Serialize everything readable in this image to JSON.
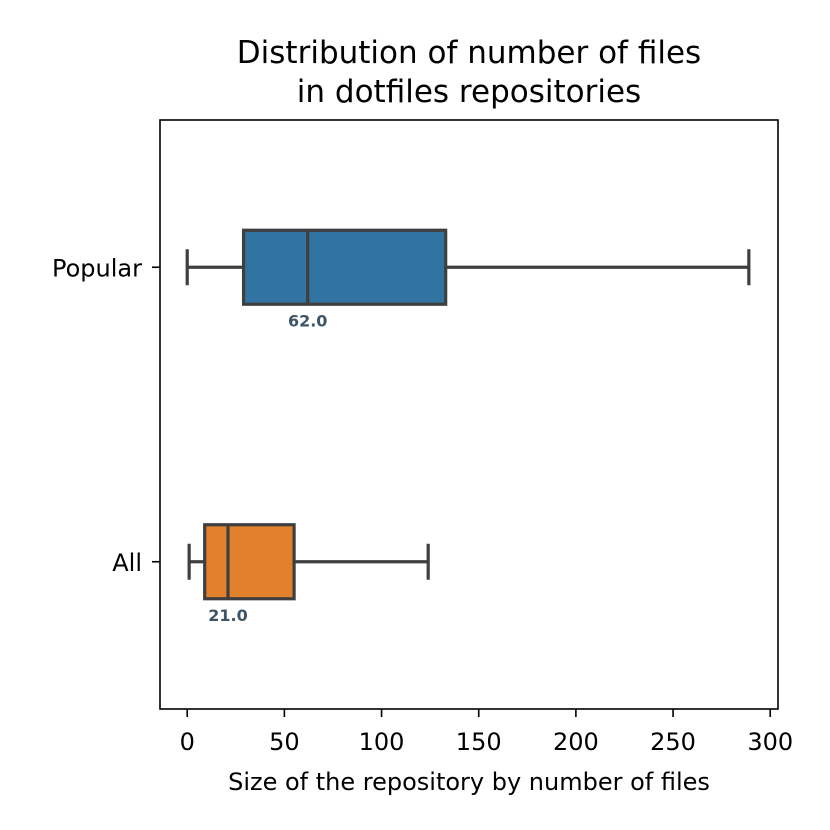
{
  "chart_data": {
    "type": "box",
    "orientation": "horizontal",
    "title": "Distribution of number of files\nin dotfiles repositories",
    "title_lines": [
      "Distribution of number of files",
      "in dotfiles repositories"
    ],
    "xlabel": "Size of the repository by number of files",
    "ylabel": "",
    "xlim": [
      -14,
      304
    ],
    "xticks": [
      0,
      50,
      100,
      150,
      200,
      250,
      300
    ],
    "xtick_labels": [
      "0",
      "50",
      "100",
      "150",
      "200",
      "250",
      "300"
    ],
    "categories": [
      "Popular",
      "All"
    ],
    "grid": false,
    "series": [
      {
        "category": "Popular",
        "whisker_low": 0,
        "q1": 29,
        "median": 62,
        "q3": 133,
        "whisker_high": 289,
        "median_label": "62.0",
        "color": "#3274a1"
      },
      {
        "category": "All",
        "whisker_low": 1,
        "q1": 9,
        "median": 21,
        "q3": 55,
        "whisker_high": 124,
        "median_label": "21.0",
        "color": "#e1812c"
      }
    ],
    "line_color": "#3f3f3f",
    "median_label_color": "#3d5566"
  }
}
